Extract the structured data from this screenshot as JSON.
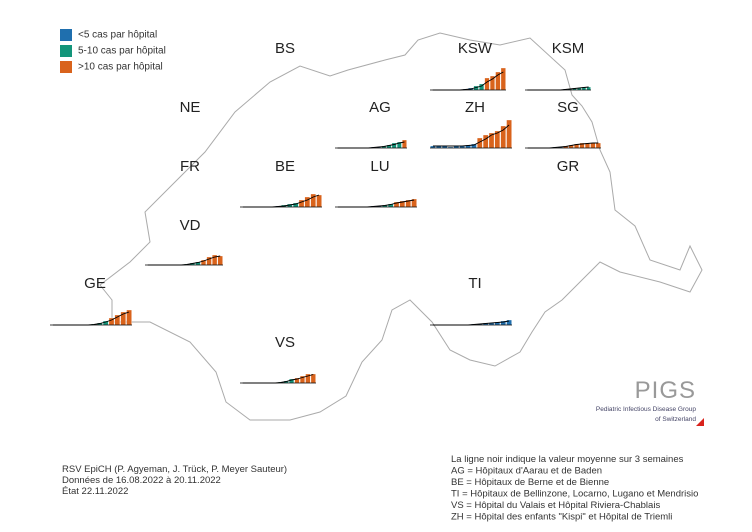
{
  "chart_data": {
    "type": "bar",
    "ylim": [
      0,
      30
    ],
    "legend": [
      {
        "label": "<5 cas par hôpital",
        "color": "#1f6fae"
      },
      {
        "label": "5-10 cas par hôpital",
        "color": "#13957a"
      },
      {
        "label": ">10 cas par hôpital",
        "color": "#d9631c"
      }
    ],
    "regions": [
      {
        "name": "BS"
      },
      {
        "name": "KSW",
        "values": [
          0,
          0,
          0,
          0,
          0,
          0,
          1,
          2,
          4,
          6,
          12,
          14,
          18,
          22
        ],
        "colors": [
          "#1f6fae",
          "#1f6fae",
          "#1f6fae",
          "#1f6fae",
          "#1f6fae",
          "#1f6fae",
          "#1f6fae",
          "#1f6fae",
          "#13957a",
          "#13957a",
          "#d9631c",
          "#d9631c",
          "#d9631c",
          "#d9631c"
        ],
        "trend": [
          0,
          0,
          0,
          0,
          0,
          0,
          0.5,
          1,
          2.5,
          4,
          8,
          11,
          15,
          18
        ]
      },
      {
        "name": "KSM",
        "values": [
          0,
          0,
          0,
          0,
          0,
          0,
          0,
          0,
          1,
          1,
          2,
          2,
          3,
          3
        ],
        "colors": [
          "#1f6fae",
          "#1f6fae",
          "#1f6fae",
          "#1f6fae",
          "#1f6fae",
          "#1f6fae",
          "#1f6fae",
          "#1f6fae",
          "#1f6fae",
          "#13957a",
          "#13957a",
          "#13957a",
          "#13957a",
          "#13957a"
        ],
        "trend": [
          0,
          0,
          0,
          0,
          0,
          0,
          0,
          0,
          0.5,
          1,
          1.5,
          2,
          2.5,
          3
        ]
      },
      {
        "name": "NE"
      },
      {
        "name": "AG",
        "values": [
          0,
          0,
          0,
          0,
          0,
          0,
          0,
          1,
          1,
          2,
          3,
          5,
          6,
          8
        ],
        "colors": [
          "#1f6fae",
          "#1f6fae",
          "#1f6fae",
          "#1f6fae",
          "#1f6fae",
          "#1f6fae",
          "#1f6fae",
          "#1f6fae",
          "#1f6fae",
          "#13957a",
          "#13957a",
          "#13957a",
          "#13957a",
          "#d9631c"
        ],
        "trend": [
          0,
          0,
          0,
          0,
          0,
          0,
          0,
          0.5,
          1,
          1.5,
          2.5,
          3.5,
          5,
          6
        ]
      },
      {
        "name": "ZH",
        "values": [
          2,
          2,
          2,
          1,
          2,
          2,
          3,
          4,
          10,
          13,
          15,
          17,
          22,
          28
        ],
        "colors": [
          "#1f6fae",
          "#1f6fae",
          "#1f6fae",
          "#1f6fae",
          "#1f6fae",
          "#1f6fae",
          "#1f6fae",
          "#1f6fae",
          "#d9631c",
          "#d9631c",
          "#d9631c",
          "#d9631c",
          "#d9631c",
          "#d9631c"
        ],
        "trend": [
          2,
          2,
          2,
          2,
          2,
          2,
          2.5,
          3,
          6,
          9,
          13,
          15,
          18,
          23
        ]
      },
      {
        "name": "SG",
        "values": [
          0,
          0,
          0,
          0,
          0,
          1,
          1,
          2,
          3,
          4,
          5,
          5,
          5,
          5
        ],
        "colors": [
          "#1f6fae",
          "#1f6fae",
          "#1f6fae",
          "#1f6fae",
          "#1f6fae",
          "#1f6fae",
          "#1f6fae",
          "#d9631c",
          "#d9631c",
          "#d9631c",
          "#d9631c",
          "#d9631c",
          "#d9631c",
          "#d9631c"
        ],
        "trend": [
          0,
          0,
          0,
          0,
          0,
          0.5,
          1,
          1.5,
          2.5,
          3.5,
          4,
          4.5,
          5,
          5
        ]
      },
      {
        "name": "FR"
      },
      {
        "name": "BE",
        "values": [
          0,
          0,
          0,
          0,
          0,
          0,
          1,
          2,
          3,
          4,
          7,
          10,
          13,
          12
        ],
        "colors": [
          "#1f6fae",
          "#1f6fae",
          "#1f6fae",
          "#1f6fae",
          "#1f6fae",
          "#1f6fae",
          "#1f6fae",
          "#13957a",
          "#13957a",
          "#13957a",
          "#d9631c",
          "#d9631c",
          "#d9631c",
          "#d9631c"
        ],
        "trend": [
          0,
          0,
          0,
          0,
          0,
          0,
          0.5,
          1,
          2,
          3,
          5,
          7,
          10,
          12
        ]
      },
      {
        "name": "LU",
        "values": [
          0,
          0,
          0,
          0,
          0,
          0,
          1,
          1,
          2,
          3,
          5,
          6,
          7,
          8
        ],
        "colors": [
          "#1f6fae",
          "#1f6fae",
          "#1f6fae",
          "#1f6fae",
          "#1f6fae",
          "#1f6fae",
          "#1f6fae",
          "#1f6fae",
          "#13957a",
          "#13957a",
          "#d9631c",
          "#d9631c",
          "#d9631c",
          "#d9631c"
        ],
        "trend": [
          0,
          0,
          0,
          0,
          0,
          0,
          0.5,
          1,
          1.5,
          2.5,
          4,
          5,
          6,
          7
        ]
      },
      {
        "name": "GR"
      },
      {
        "name": "VD",
        "values": [
          0,
          0,
          0,
          0,
          0,
          0,
          0,
          1,
          2,
          3,
          5,
          8,
          10,
          9
        ],
        "colors": [
          "#1f6fae",
          "#1f6fae",
          "#1f6fae",
          "#1f6fae",
          "#1f6fae",
          "#1f6fae",
          "#1f6fae",
          "#13957a",
          "#13957a",
          "#13957a",
          "#d9631c",
          "#d9631c",
          "#d9631c",
          "#d9631c"
        ],
        "trend": [
          0,
          0,
          0,
          0,
          0,
          0,
          0,
          0.5,
          1.5,
          2.5,
          4,
          6,
          8,
          9
        ]
      },
      {
        "name": "GE",
        "values": [
          0,
          0,
          0,
          0,
          0,
          0,
          0,
          1,
          2,
          4,
          7,
          10,
          13,
          15
        ],
        "colors": [
          "#1f6fae",
          "#1f6fae",
          "#1f6fae",
          "#1f6fae",
          "#1f6fae",
          "#1f6fae",
          "#1f6fae",
          "#13957a",
          "#13957a",
          "#13957a",
          "#d9631c",
          "#d9631c",
          "#d9631c",
          "#d9631c"
        ],
        "trend": [
          0,
          0,
          0,
          0,
          0,
          0,
          0,
          0.5,
          1.5,
          3,
          5,
          8,
          11,
          13
        ]
      },
      {
        "name": "TI",
        "values": [
          0,
          0,
          0,
          0,
          0,
          0,
          0,
          1,
          1,
          2,
          2,
          3,
          4,
          5
        ],
        "colors": [
          "#1f6fae",
          "#1f6fae",
          "#1f6fae",
          "#1f6fae",
          "#1f6fae",
          "#1f6fae",
          "#1f6fae",
          "#1f6fae",
          "#1f6fae",
          "#1f6fae",
          "#1f6fae",
          "#1f6fae",
          "#1f6fae",
          "#1f6fae"
        ],
        "trend": [
          0,
          0,
          0,
          0,
          0,
          0,
          0,
          0.5,
          1,
          1.5,
          2,
          2.5,
          3,
          4
        ]
      },
      {
        "name": "VS",
        "values": [
          0,
          0,
          0,
          0,
          0,
          0,
          0,
          1,
          2,
          4,
          5,
          7,
          9,
          9
        ],
        "colors": [
          "#1f6fae",
          "#1f6fae",
          "#1f6fae",
          "#1f6fae",
          "#1f6fae",
          "#1f6fae",
          "#1f6fae",
          "#13957a",
          "#13957a",
          "#13957a",
          "#d9631c",
          "#d9631c",
          "#d9631c",
          "#d9631c"
        ],
        "trend": [
          0,
          0,
          0,
          0,
          0,
          0,
          0,
          0.5,
          1.5,
          3,
          4,
          5.5,
          7,
          8.5
        ]
      }
    ],
    "source": [
      "RSV EpiCH (P. Agyeman, J. Trück, P. Meyer Sauteur)",
      "Données de 16.08.2022 à 20.11.2022",
      "État 22.11.2022"
    ],
    "notes": [
      "La ligne noir indique la valeur moyenne sur 3 semaines",
      "AG = Hôpitaux d'Aarau et de Baden",
      "BE = Hôpitaux de Berne et de Bienne",
      "TI = Hôpitaux de Bellinzone, Locarno, Lugano et Mendrisio",
      "VS = Hôpital du Valais et Hôpital Riviera-Chablais",
      "ZH = Hôpital des enfants \"Kispi\" et Hôpital de Triemli"
    ],
    "logo": {
      "title": "PIGS",
      "line1": "Pediatric Infectious Disease Group",
      "line2": "of Switzerland"
    }
  }
}
